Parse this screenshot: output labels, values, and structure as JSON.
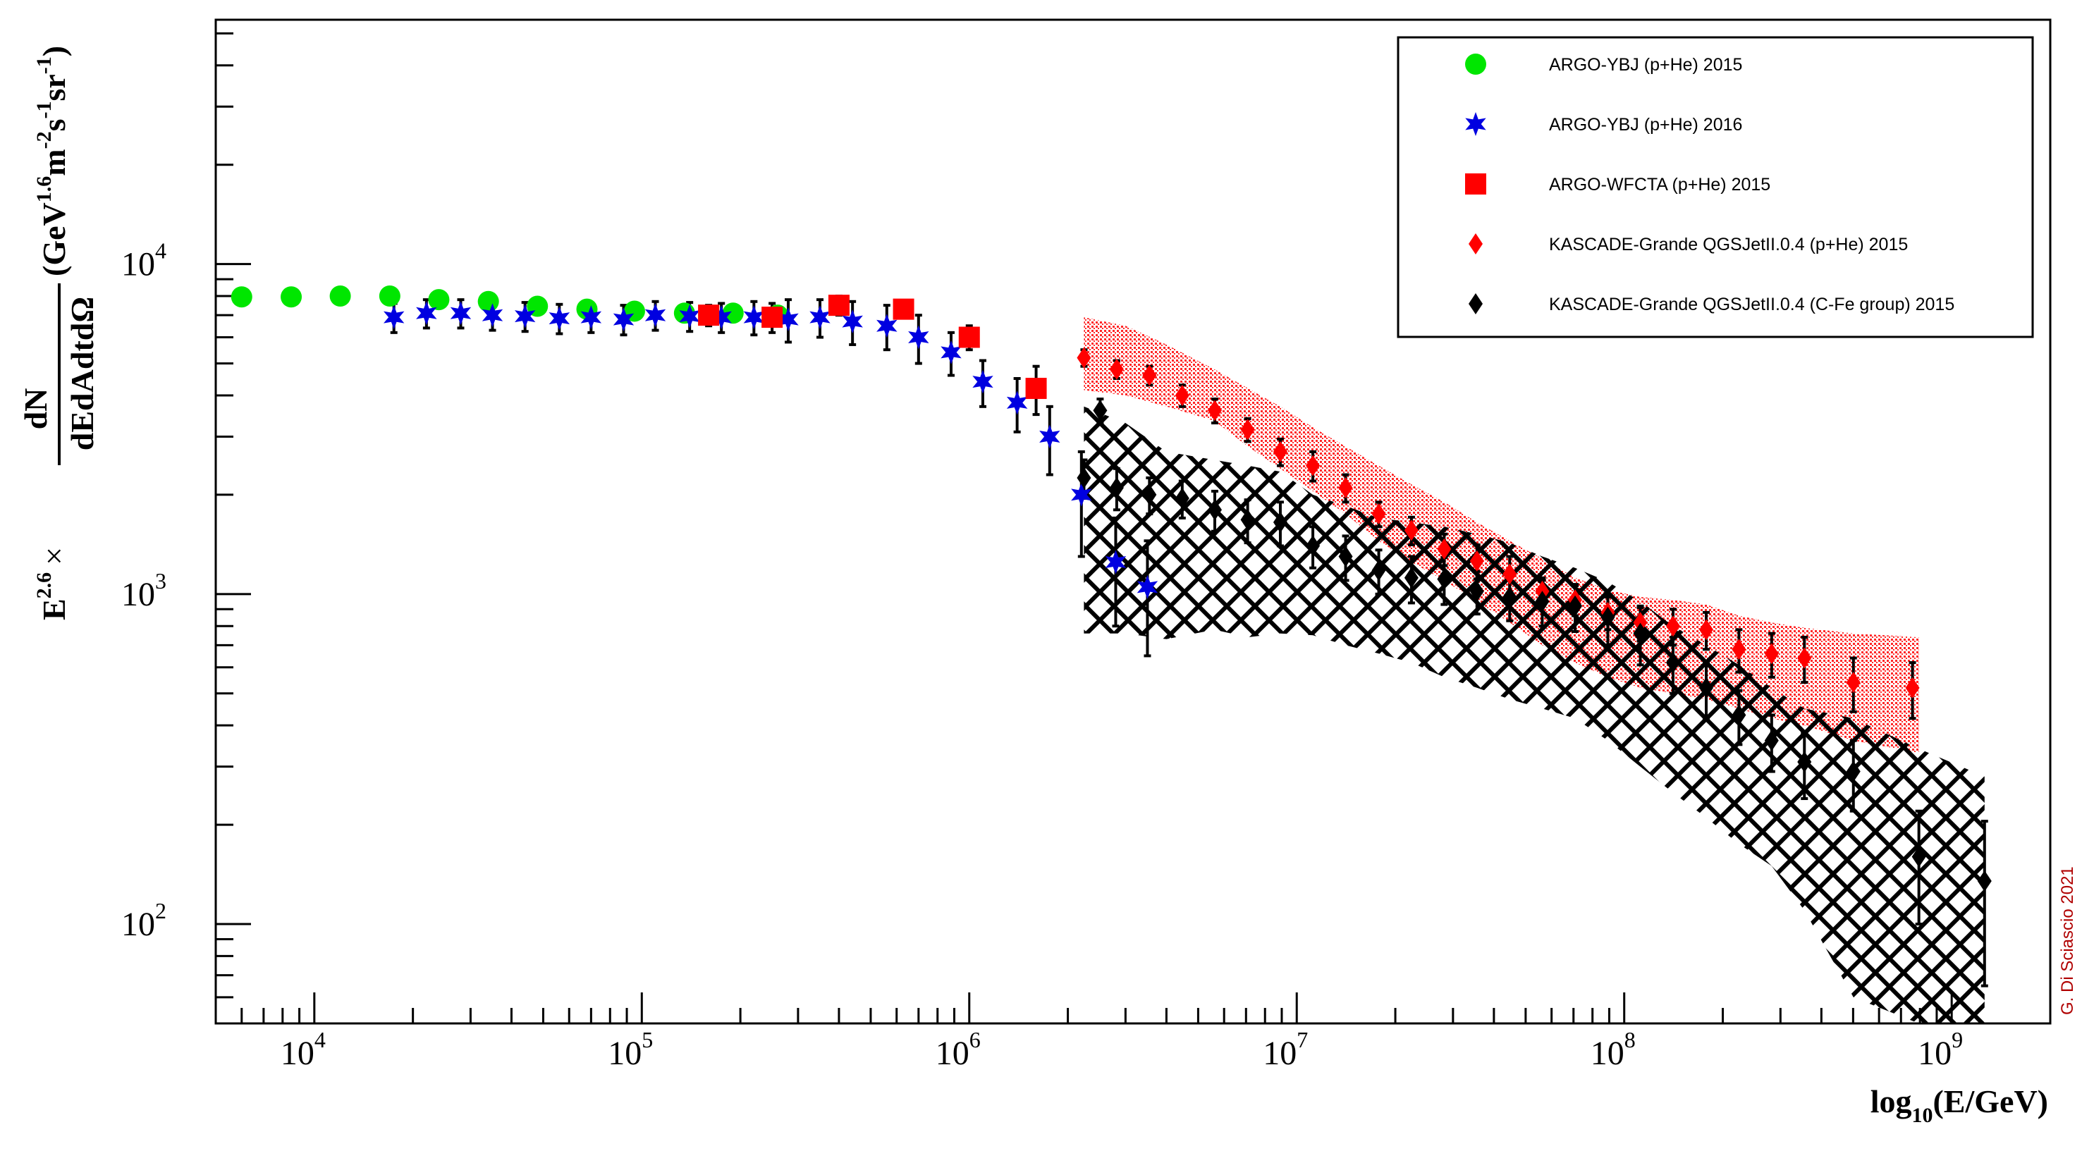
{
  "chart_data": {
    "type": "scatter",
    "xscale": "log",
    "yscale": "log",
    "xlim": [
      5000,
      2000000000
    ],
    "ylim": [
      50,
      55000
    ],
    "xticks": [
      {
        "value": 10000,
        "base": "10",
        "exp": "4"
      },
      {
        "value": 100000,
        "base": "10",
        "exp": "5"
      },
      {
        "value": 1000000,
        "base": "10",
        "exp": "6"
      },
      {
        "value": 10000000,
        "base": "10",
        "exp": "7"
      },
      {
        "value": 100000000,
        "base": "10",
        "exp": "8"
      },
      {
        "value": 1000000000,
        "base": "10",
        "exp": "9"
      }
    ],
    "yticks": [
      {
        "value": 100,
        "base": "10",
        "exp": "2"
      },
      {
        "value": 1000,
        "base": "10",
        "exp": "3"
      },
      {
        "value": 10000,
        "base": "10",
        "exp": "4"
      }
    ],
    "xlabel": {
      "prefix": "log",
      "sub": "10",
      "rest": "(E/GeV)"
    },
    "ylabel": {
      "e": "E",
      "e_exp": "2.6",
      "times": "×",
      "numerator": "dN",
      "denominator": "dEdAdtdΩ",
      "units": "(GeV",
      "units_exp1": "1.6",
      "units_m": "m",
      "units_exp2": "-2",
      "units_s": "s",
      "units_exp3": "-1",
      "units_sr": "sr",
      "units_exp4": "-1",
      "units_close": ")"
    },
    "credit": "G. Di Sciascio 2021",
    "series": [
      {
        "name": "ARGO-YBJ (p+He) 2015",
        "marker": "circle",
        "color": "#00e600",
        "points": [
          [
            6000,
            7950
          ],
          [
            8500,
            7950
          ],
          [
            12000,
            8000
          ],
          [
            17000,
            8000
          ],
          [
            24000,
            7800
          ],
          [
            34000,
            7700
          ],
          [
            48000,
            7450
          ],
          [
            68000,
            7300
          ],
          [
            95000,
            7200
          ],
          [
            135000,
            7100
          ],
          [
            190000,
            7100
          ],
          [
            260000,
            7000
          ]
        ]
      },
      {
        "name": "ARGO-YBJ (p+He) 2016",
        "marker": "star",
        "color": "#0000e0",
        "points": [
          [
            17500,
            6900,
            700
          ],
          [
            22000,
            7100,
            700
          ],
          [
            28000,
            7100,
            700
          ],
          [
            35000,
            7000,
            700
          ],
          [
            44000,
            6950,
            700
          ],
          [
            56000,
            6850,
            700
          ],
          [
            70000,
            6900,
            700
          ],
          [
            88000,
            6800,
            700
          ],
          [
            110000,
            7000,
            700
          ],
          [
            140000,
            6950,
            700
          ],
          [
            175000,
            6900,
            700
          ],
          [
            220000,
            6900,
            800
          ],
          [
            280000,
            6800,
            1000
          ],
          [
            350000,
            6900,
            900
          ],
          [
            440000,
            6700,
            1000
          ],
          [
            560000,
            6500,
            1000
          ],
          [
            700000,
            6000,
            1000
          ],
          [
            880000,
            5400,
            800
          ],
          [
            1100000,
            4400,
            700
          ],
          [
            1400000,
            3800,
            700
          ],
          [
            1760000,
            3000,
            700
          ],
          [
            2200000,
            2000,
            700
          ],
          [
            2800000,
            1250,
            450
          ],
          [
            3500000,
            1050,
            400
          ]
        ]
      },
      {
        "name": "ARGO-WFCTA (p+He) 2015",
        "marker": "square",
        "color": "#ff0000",
        "points": [
          [
            160000,
            7000,
            500
          ],
          [
            250000,
            6900,
            700
          ],
          [
            400000,
            7500,
            500
          ],
          [
            630000,
            7300,
            400
          ],
          [
            1000000,
            6000,
            500
          ],
          [
            1600000,
            4200,
            700
          ]
        ]
      },
      {
        "name": "KASCADE-Grande QGSJetII.0.4 (p+He) 2015",
        "marker": "diamond",
        "color": "#ff0000",
        "points": [
          [
            2240000,
            5200,
            300
          ],
          [
            2820000,
            4800,
            300
          ],
          [
            3550000,
            4600,
            300
          ],
          [
            4470000,
            4000,
            300
          ],
          [
            5620000,
            3600,
            300
          ],
          [
            7080000,
            3150,
            250
          ],
          [
            8910000,
            2700,
            250
          ],
          [
            11200000,
            2450,
            250
          ],
          [
            14100000,
            2100,
            200
          ],
          [
            17800000,
            1750,
            150
          ],
          [
            22400000,
            1560,
            150
          ],
          [
            28200000,
            1370,
            150
          ],
          [
            35500000,
            1260,
            150
          ],
          [
            44700000,
            1150,
            150
          ],
          [
            56200000,
            1020,
            100
          ],
          [
            70800000,
            960,
            100
          ],
          [
            89100000,
            880,
            100
          ],
          [
            112000000,
            820,
            100
          ],
          [
            141000000,
            800,
            100
          ],
          [
            178000000,
            780,
            100
          ],
          [
            224000000,
            680,
            100
          ],
          [
            282000000,
            660,
            100
          ],
          [
            355000000,
            640,
            100
          ],
          [
            501000000,
            540,
            100
          ],
          [
            759000000,
            520,
            100
          ]
        ]
      },
      {
        "name": "KASCADE-Grande QGSJetII.0.4 (C-Fe group) 2015",
        "marker": "diamond",
        "color": "#000000",
        "points": [
          [
            2240000,
            2250,
            300
          ],
          [
            2510000,
            3600,
            300
          ],
          [
            2820000,
            2100,
            300
          ],
          [
            3550000,
            2000,
            250
          ],
          [
            4470000,
            1950,
            250
          ],
          [
            5620000,
            1800,
            250
          ],
          [
            7080000,
            1680,
            250
          ],
          [
            8910000,
            1650,
            250
          ],
          [
            11200000,
            1400,
            200
          ],
          [
            14100000,
            1300,
            200
          ],
          [
            17800000,
            1180,
            180
          ],
          [
            22400000,
            1120,
            180
          ],
          [
            28200000,
            1110,
            180
          ],
          [
            35500000,
            1020,
            150
          ],
          [
            44700000,
            980,
            150
          ],
          [
            56200000,
            950,
            150
          ],
          [
            70800000,
            920,
            150
          ],
          [
            89100000,
            850,
            150
          ],
          [
            112000000,
            760,
            150
          ],
          [
            141000000,
            620,
            120
          ],
          [
            178000000,
            520,
            100
          ],
          [
            224000000,
            430,
            80
          ],
          [
            282000000,
            360,
            70
          ],
          [
            355000000,
            310,
            70
          ],
          [
            501000000,
            290,
            70
          ],
          [
            794000000,
            160,
            60
          ],
          [
            1260000000,
            135,
            70
          ]
        ]
      }
    ],
    "bands": [
      {
        "name": "KASCADE-Grande QGSJetII.0.4 (p+He) 2015",
        "color": "#ff0000",
        "upper": [
          [
            2240000,
            6900
          ],
          [
            3000000,
            6500
          ],
          [
            4000000,
            5700
          ],
          [
            5600000,
            4800
          ],
          [
            7100000,
            4200
          ],
          [
            8900000,
            3700
          ],
          [
            11200000,
            3200
          ],
          [
            14100000,
            2800
          ],
          [
            17800000,
            2450
          ],
          [
            22400000,
            2150
          ],
          [
            28200000,
            1900
          ],
          [
            35500000,
            1650
          ],
          [
            44700000,
            1450
          ],
          [
            56200000,
            1280
          ],
          [
            70800000,
            1120
          ],
          [
            89100000,
            1030
          ],
          [
            112000000,
            980
          ],
          [
            141000000,
            960
          ],
          [
            178000000,
            930
          ],
          [
            224000000,
            860
          ],
          [
            282000000,
            820
          ],
          [
            355000000,
            790
          ],
          [
            501000000,
            760
          ],
          [
            794000000,
            740
          ]
        ],
        "lower": [
          [
            2240000,
            4150
          ],
          [
            3000000,
            4000
          ],
          [
            4000000,
            3700
          ],
          [
            5600000,
            3350
          ],
          [
            7100000,
            2800
          ],
          [
            8900000,
            2400
          ],
          [
            11200000,
            2050
          ],
          [
            14100000,
            1750
          ],
          [
            17800000,
            1450
          ],
          [
            22400000,
            1250
          ],
          [
            28200000,
            1100
          ],
          [
            35500000,
            950
          ],
          [
            44700000,
            820
          ],
          [
            56200000,
            700
          ],
          [
            70800000,
            620
          ],
          [
            89100000,
            560
          ],
          [
            112000000,
            520
          ],
          [
            141000000,
            500
          ],
          [
            178000000,
            480
          ],
          [
            224000000,
            450
          ],
          [
            282000000,
            420
          ],
          [
            355000000,
            400
          ],
          [
            501000000,
            360
          ],
          [
            794000000,
            330
          ]
        ]
      },
      {
        "name": "KASCADE-Grande QGSJetII.0.4 (C-Fe group) 2015",
        "color": "#000000",
        "upper": [
          [
            2240000,
            3700
          ],
          [
            3000000,
            3300
          ],
          [
            4000000,
            2700
          ],
          [
            5600000,
            2550
          ],
          [
            7100000,
            2450
          ],
          [
            8900000,
            2350
          ],
          [
            11200000,
            2000
          ],
          [
            14100000,
            1850
          ],
          [
            17800000,
            1700
          ],
          [
            22400000,
            1650
          ],
          [
            28200000,
            1600
          ],
          [
            35500000,
            1520
          ],
          [
            44700000,
            1430
          ],
          [
            56200000,
            1300
          ],
          [
            70800000,
            1200
          ],
          [
            89100000,
            1090
          ],
          [
            112000000,
            950
          ],
          [
            141000000,
            800
          ],
          [
            178000000,
            700
          ],
          [
            224000000,
            610
          ],
          [
            282000000,
            520
          ],
          [
            355000000,
            450
          ],
          [
            501000000,
            420
          ],
          [
            794000000,
            340
          ],
          [
            1260000000,
            280
          ]
        ],
        "lower": [
          [
            2240000,
            760
          ],
          [
            3000000,
            760
          ],
          [
            4000000,
            730
          ],
          [
            5600000,
            780
          ],
          [
            7100000,
            740
          ],
          [
            8900000,
            760
          ],
          [
            11200000,
            750
          ],
          [
            14100000,
            700
          ],
          [
            17800000,
            660
          ],
          [
            22400000,
            620
          ],
          [
            28200000,
            560
          ],
          [
            35500000,
            520
          ],
          [
            44700000,
            480
          ],
          [
            56200000,
            450
          ],
          [
            70800000,
            420
          ],
          [
            89100000,
            360
          ],
          [
            112000000,
            300
          ],
          [
            141000000,
            250
          ],
          [
            178000000,
            210
          ],
          [
            224000000,
            175
          ],
          [
            282000000,
            150
          ],
          [
            355000000,
            110
          ],
          [
            501000000,
            60
          ],
          [
            794000000,
            50
          ],
          [
            1260000000,
            50
          ]
        ]
      }
    ]
  },
  "legend": {
    "entries": [
      {
        "label": "ARGO-YBJ (p+He) 2015",
        "marker": "circle",
        "color": "#00e600"
      },
      {
        "label": "ARGO-YBJ (p+He) 2016",
        "marker": "star",
        "color": "#0000e0"
      },
      {
        "label": "ARGO-WFCTA (p+He) 2015",
        "marker": "square",
        "color": "#ff0000"
      },
      {
        "label": "KASCADE-Grande QGSJetII.0.4 (p+He) 2015",
        "marker": "diamond",
        "color": "#ff0000"
      },
      {
        "label": "KASCADE-Grande QGSJetII.0.4 (C-Fe group) 2015",
        "marker": "diamond",
        "color": "#000000"
      }
    ]
  }
}
